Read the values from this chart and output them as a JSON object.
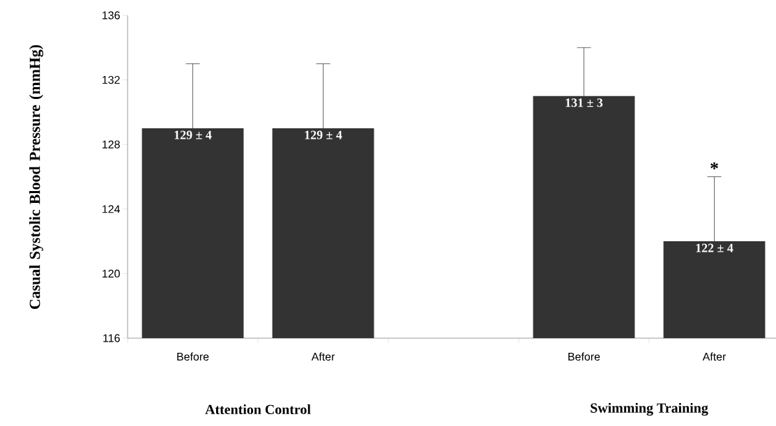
{
  "chart_data": {
    "type": "bar",
    "ylabel": "Casual Systolic Blood Pressure (mmHg)",
    "categories": [
      "Before",
      "After",
      null,
      "Before",
      "After"
    ],
    "values": [
      129,
      129,
      null,
      131,
      122
    ],
    "errors": [
      [
        129,
        133
      ],
      [
        129,
        133
      ],
      null,
      [
        131,
        134
      ],
      [
        122,
        126
      ]
    ],
    "value_labels": [
      "129 ± 4",
      "129 ± 4",
      null,
      "131 ± 3",
      "122 ± 4"
    ],
    "color": "#333333",
    "ylim": [
      116,
      136
    ],
    "yticks": [
      116,
      120,
      124,
      128,
      132,
      136
    ],
    "annotations": [
      {
        "text": "*",
        "y": 126
      },
      "Attention Control",
      "Swimming Training"
    ]
  }
}
